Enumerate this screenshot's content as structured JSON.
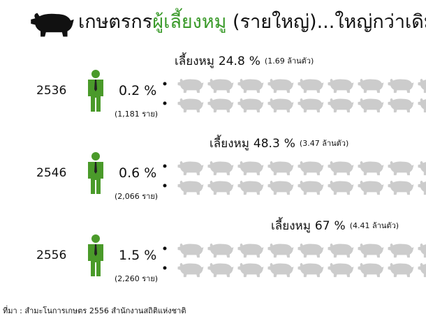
{
  "title": {
    "part1": "เกษตรกร",
    "part2": "ผู้เลี้ยงหมู",
    "part3": " (รายใหญ่)...ใหญ่กว่าเดิม"
  },
  "unit": "%",
  "rows": [
    {
      "year": "2536",
      "farmer_pct": 0.2,
      "farmers": "(1,181 ราย)",
      "pig_label": "เลี้ยงหมู",
      "pig_pct": 24.8,
      "pig_count": "(1.69 ล้านตัว)"
    },
    {
      "year": "2546",
      "farmer_pct": 0.6,
      "farmers": "(2,066 ราย)",
      "pig_label": "เลี้ยงหมู",
      "pig_pct": 48.3,
      "pig_count": "(3.47 ล้านตัว)"
    },
    {
      "year": "2556",
      "farmer_pct": 1.5,
      "farmers": "(2,260 ราย)",
      "pig_label": "เลี้ยงหมู",
      "pig_pct": 67.0,
      "pig_count": "(4.41 ล้านตัว)"
    }
  ],
  "source": "ที่มา : สำมะโนการเกษตร 2556  สำนักงานสถิติแห่งชาติ"
}
